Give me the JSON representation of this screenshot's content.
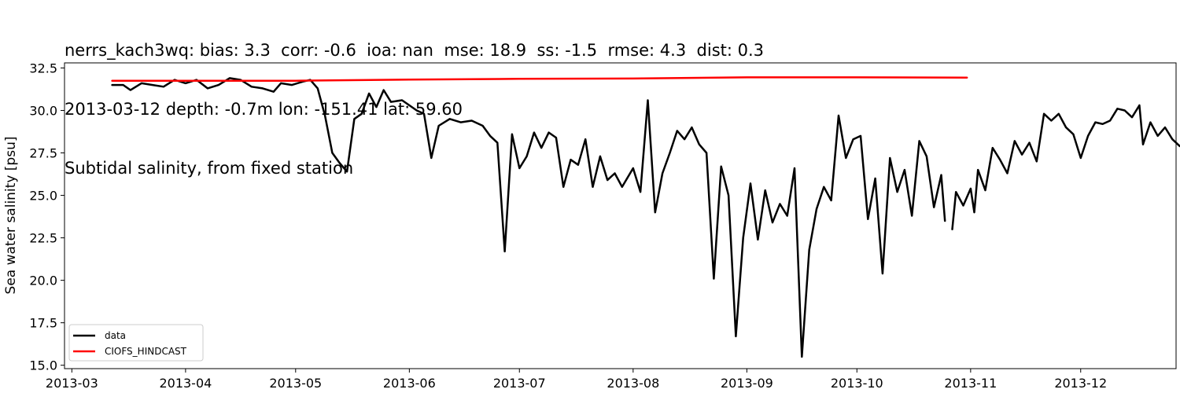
{
  "chart_data": {
    "type": "line",
    "title_lines": [
      "nerrs_kach3wq: bias: 3.3  corr: -0.6  ioa: nan  mse: 18.9  ss: -1.5  rmse: 4.3  dist: 0.3",
      "2013-03-12 depth: -0.7m lon: -151.41 lat: 59.60",
      "Subtidal salinity, from fixed station"
    ],
    "xlabel": "",
    "ylabel": "Sea water salinity [psu]",
    "x_axis_type": "date",
    "xlim": [
      "2013-02-27",
      "2013-12-27"
    ],
    "ylim": [
      14.8,
      32.8
    ],
    "x_ticks": [
      "2013-03",
      "2013-04",
      "2013-05",
      "2013-06",
      "2013-07",
      "2013-08",
      "2013-09",
      "2013-10",
      "2013-11",
      "2013-12"
    ],
    "y_ticks": [
      "15.0",
      "17.5",
      "20.0",
      "22.5",
      "25.0",
      "27.5",
      "30.0",
      "32.5"
    ],
    "grid": false,
    "legend_position": "lower-left",
    "series": [
      {
        "name": "data",
        "color": "#000000",
        "segments": [
          [
            [
              "2013-03-12",
              31.5
            ],
            [
              "2013-03-15",
              31.5
            ],
            [
              "2013-03-17",
              31.2
            ],
            [
              "2013-03-20",
              31.6
            ],
            [
              "2013-03-23",
              31.5
            ],
            [
              "2013-03-26",
              31.4
            ],
            [
              "2013-03-29",
              31.8
            ],
            [
              "2013-04-01",
              31.6
            ],
            [
              "2013-04-04",
              31.8
            ],
            [
              "2013-04-07",
              31.3
            ],
            [
              "2013-04-10",
              31.5
            ],
            [
              "2013-04-13",
              31.9
            ],
            [
              "2013-04-16",
              31.8
            ],
            [
              "2013-04-19",
              31.4
            ],
            [
              "2013-04-22",
              31.3
            ],
            [
              "2013-04-25",
              31.1
            ],
            [
              "2013-04-27",
              31.6
            ],
            [
              "2013-04-30",
              31.5
            ],
            [
              "2013-05-03",
              31.7
            ],
            [
              "2013-05-05",
              31.8
            ],
            [
              "2013-05-07",
              31.3
            ],
            [
              "2013-05-09",
              29.7
            ],
            [
              "2013-05-11",
              27.5
            ],
            [
              "2013-05-13",
              26.9
            ],
            [
              "2013-05-15",
              26.4
            ],
            [
              "2013-05-17",
              29.5
            ],
            [
              "2013-05-19",
              29.8
            ],
            [
              "2013-05-21",
              31.0
            ],
            [
              "2013-05-23",
              30.2
            ],
            [
              "2013-05-25",
              31.2
            ],
            [
              "2013-05-27",
              30.5
            ],
            [
              "2013-05-30",
              30.6
            ],
            [
              "2013-06-01",
              30.3
            ],
            [
              "2013-06-03",
              30.0
            ],
            [
              "2013-06-05",
              29.8
            ],
            [
              "2013-06-07",
              27.2
            ],
            [
              "2013-06-09",
              29.1
            ],
            [
              "2013-06-12",
              29.5
            ],
            [
              "2013-06-15",
              29.3
            ],
            [
              "2013-06-18",
              29.4
            ],
            [
              "2013-06-21",
              29.1
            ],
            [
              "2013-06-23",
              28.5
            ],
            [
              "2013-06-25",
              28.1
            ],
            [
              "2013-06-27",
              21.7
            ],
            [
              "2013-06-29",
              28.6
            ],
            [
              "2013-07-01",
              26.6
            ],
            [
              "2013-07-03",
              27.3
            ],
            [
              "2013-07-05",
              28.7
            ],
            [
              "2013-07-07",
              27.8
            ],
            [
              "2013-07-09",
              28.7
            ],
            [
              "2013-07-11",
              28.4
            ],
            [
              "2013-07-13",
              25.5
            ],
            [
              "2013-07-15",
              27.1
            ],
            [
              "2013-07-17",
              26.8
            ],
            [
              "2013-07-19",
              28.3
            ],
            [
              "2013-07-21",
              25.5
            ],
            [
              "2013-07-23",
              27.3
            ],
            [
              "2013-07-25",
              25.9
            ],
            [
              "2013-07-27",
              26.3
            ],
            [
              "2013-07-29",
              25.5
            ],
            [
              "2013-08-01",
              26.6
            ],
            [
              "2013-08-03",
              25.2
            ],
            [
              "2013-08-05",
              30.6
            ],
            [
              "2013-08-07",
              24.0
            ],
            [
              "2013-08-09",
              26.3
            ],
            [
              "2013-08-11",
              27.5
            ],
            [
              "2013-08-13",
              28.8
            ],
            [
              "2013-08-15",
              28.3
            ],
            [
              "2013-08-17",
              29.0
            ],
            [
              "2013-08-19",
              28.0
            ],
            [
              "2013-08-21",
              27.5
            ],
            [
              "2013-08-23",
              20.1
            ],
            [
              "2013-08-25",
              26.7
            ],
            [
              "2013-08-27",
              25.0
            ],
            [
              "2013-08-29",
              16.7
            ],
            [
              "2013-08-31",
              22.5
            ],
            [
              "2013-09-02",
              25.7
            ],
            [
              "2013-09-04",
              22.4
            ],
            [
              "2013-09-06",
              25.3
            ],
            [
              "2013-09-08",
              23.4
            ],
            [
              "2013-09-10",
              24.5
            ],
            [
              "2013-09-12",
              23.8
            ],
            [
              "2013-09-14",
              26.6
            ],
            [
              "2013-09-16",
              15.5
            ],
            [
              "2013-09-18",
              21.8
            ],
            [
              "2013-09-20",
              24.2
            ],
            [
              "2013-09-22",
              25.5
            ],
            [
              "2013-09-24",
              24.7
            ],
            [
              "2013-09-26",
              29.7
            ],
            [
              "2013-09-28",
              27.2
            ],
            [
              "2013-09-30",
              28.3
            ],
            [
              "2013-10-02",
              28.5
            ],
            [
              "2013-10-04",
              23.6
            ],
            [
              "2013-10-06",
              26.0
            ],
            [
              "2013-10-08",
              20.4
            ],
            [
              "2013-10-10",
              27.2
            ],
            [
              "2013-10-12",
              25.2
            ],
            [
              "2013-10-14",
              26.5
            ],
            [
              "2013-10-16",
              23.8
            ],
            [
              "2013-10-18",
              28.2
            ],
            [
              "2013-10-20",
              27.3
            ],
            [
              "2013-10-22",
              24.3
            ],
            [
              "2013-10-24",
              26.2
            ],
            [
              "2013-10-25",
              23.5
            ]
          ],
          [
            [
              "2013-10-27",
              23.0
            ],
            [
              "2013-10-28",
              25.2
            ],
            [
              "2013-10-30",
              24.4
            ],
            [
              "2013-11-01",
              25.4
            ],
            [
              "2013-11-02",
              24.0
            ],
            [
              "2013-11-03",
              26.5
            ],
            [
              "2013-11-05",
              25.3
            ],
            [
              "2013-11-07",
              27.8
            ],
            [
              "2013-11-09",
              27.1
            ],
            [
              "2013-11-11",
              26.3
            ],
            [
              "2013-11-13",
              28.2
            ],
            [
              "2013-11-15",
              27.4
            ],
            [
              "2013-11-17",
              28.1
            ],
            [
              "2013-11-19",
              27.0
            ],
            [
              "2013-11-21",
              29.8
            ],
            [
              "2013-11-23",
              29.4
            ],
            [
              "2013-11-25",
              29.8
            ],
            [
              "2013-11-27",
              29.0
            ],
            [
              "2013-11-29",
              28.6
            ],
            [
              "2013-12-01",
              27.2
            ],
            [
              "2013-12-03",
              28.5
            ],
            [
              "2013-12-05",
              29.3
            ],
            [
              "2013-12-07",
              29.2
            ],
            [
              "2013-12-09",
              29.4
            ],
            [
              "2013-12-11",
              30.1
            ],
            [
              "2013-12-13",
              30.0
            ],
            [
              "2013-12-15",
              29.6
            ],
            [
              "2013-12-17",
              30.3
            ],
            [
              "2013-12-18",
              28.0
            ],
            [
              "2013-12-20",
              29.3
            ],
            [
              "2013-12-22",
              28.5
            ],
            [
              "2013-12-24",
              29.0
            ],
            [
              "2013-12-26",
              28.3
            ],
            [
              "2013-12-28",
              27.9
            ],
            [
              "2013-12-30",
              28.2
            ]
          ]
        ]
      },
      {
        "name": "CIOFS_HINDCAST",
        "color": "#ff0000",
        "segments": [
          [
            [
              "2013-03-12",
              31.75
            ],
            [
              "2013-04-01",
              31.75
            ],
            [
              "2013-05-01",
              31.75
            ],
            [
              "2013-06-01",
              31.82
            ],
            [
              "2013-07-01",
              31.86
            ],
            [
              "2013-08-01",
              31.88
            ],
            [
              "2013-09-01",
              31.95
            ],
            [
              "2013-10-01",
              31.95
            ],
            [
              "2013-10-31",
              31.93
            ]
          ]
        ]
      }
    ]
  }
}
